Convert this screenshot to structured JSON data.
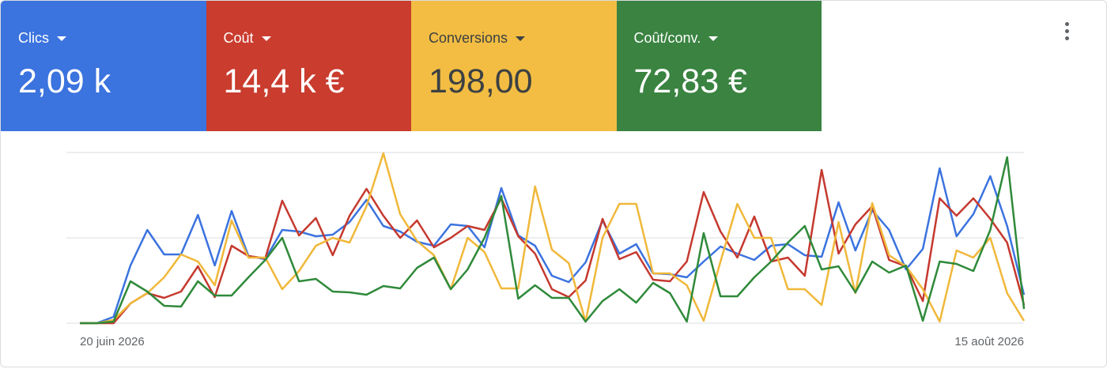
{
  "scorecards": [
    {
      "label": "Clics",
      "value": "2,09 k",
      "color": "#3b73df"
    },
    {
      "label": "Coût",
      "value": "14,4 k €",
      "color": "#c93c2e"
    },
    {
      "label": "Conversions",
      "value": "198,00",
      "color": "#f2bd42"
    },
    {
      "label": "Coût/conv.",
      "value": "72,83 €",
      "color": "#3a8341"
    }
  ],
  "chart_data": {
    "type": "line",
    "categories": [
      "20 juin 2026",
      null,
      null,
      null,
      null,
      null,
      null,
      null,
      null,
      null,
      null,
      null,
      null,
      null,
      null,
      null,
      null,
      null,
      null,
      null,
      null,
      null,
      null,
      null,
      null,
      null,
      null,
      null,
      null,
      null,
      null,
      null,
      null,
      null,
      null,
      null,
      null,
      null,
      null,
      null,
      null,
      null,
      null,
      null,
      null,
      null,
      null,
      null,
      null,
      null,
      null,
      null,
      null,
      null,
      null,
      null,
      "15 août 2026"
    ],
    "series": [
      {
        "color": "#3b73df",
        "values": [
          0,
          0,
          8,
          73,
          118,
          87,
          87,
          137,
          73,
          142,
          85,
          81,
          118,
          116,
          110,
          112,
          128,
          156,
          123,
          116,
          103,
          98,
          125,
          123,
          96,
          171,
          111,
          98,
          60,
          52,
          77,
          130,
          88,
          100,
          63,
          62,
          58,
          78,
          97,
          88,
          80,
          98,
          100,
          86,
          84,
          153,
          92,
          143,
          118,
          68,
          94,
          196,
          110,
          138,
          186,
          123,
          36
        ]
      },
      {
        "color": "#c5392f",
        "values": [
          0,
          0,
          0,
          25,
          38,
          32,
          40,
          72,
          33,
          98,
          85,
          82,
          155,
          111,
          133,
          86,
          136,
          170,
          136,
          108,
          130,
          96,
          108,
          123,
          118,
          158,
          110,
          88,
          43,
          33,
          54,
          132,
          81,
          90,
          55,
          53,
          78,
          166,
          116,
          83,
          135,
          78,
          83,
          60,
          194,
          88,
          125,
          148,
          80,
          72,
          28,
          158,
          136,
          158,
          132,
          102,
          23
        ]
      },
      {
        "color": "#f0b83a",
        "values": [
          0,
          0,
          4,
          25,
          38,
          58,
          87,
          78,
          48,
          130,
          83,
          83,
          43,
          66,
          98,
          108,
          102,
          148,
          215,
          138,
          104,
          86,
          43,
          108,
          90,
          44,
          44,
          173,
          93,
          76,
          2,
          108,
          151,
          151,
          63,
          63,
          48,
          3,
          78,
          151,
          108,
          108,
          43,
          43,
          23,
          128,
          38,
          152,
          86,
          72,
          43,
          2,
          92,
          83,
          108,
          38,
          3
        ]
      },
      {
        "color": "#2f8a3a",
        "values": [
          0,
          0,
          2,
          53,
          40,
          22,
          21,
          53,
          35,
          35,
          58,
          80,
          108,
          53,
          56,
          40,
          39,
          36,
          47,
          44,
          70,
          83,
          43,
          68,
          108,
          161,
          31,
          48,
          32,
          32,
          2,
          28,
          43,
          26,
          51,
          38,
          2,
          114,
          34,
          34,
          58,
          78,
          102,
          123,
          68,
          72,
          39,
          78,
          64,
          73,
          3,
          78,
          75,
          66,
          118,
          210,
          18
        ]
      }
    ],
    "ylim": [
      0,
      216
    ],
    "yticks": [
      0,
      108,
      216
    ],
    "grid": true
  }
}
